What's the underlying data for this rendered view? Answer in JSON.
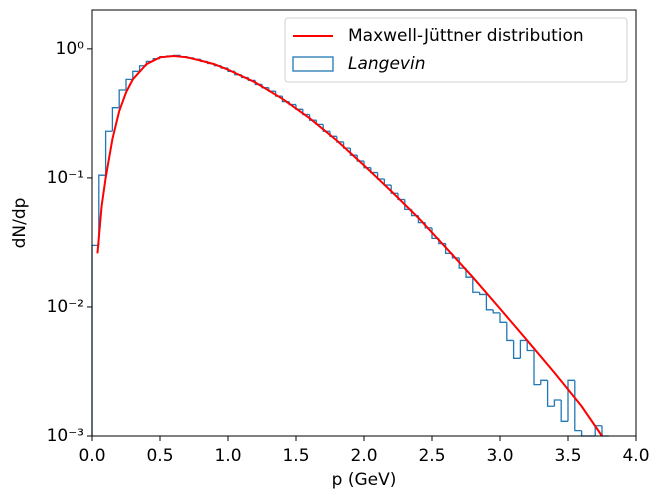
{
  "chart_data": {
    "type": "histogram",
    "xlabel": "p (GeV)",
    "ylabel": "dN/dp",
    "log_y": true,
    "xlim": [
      0,
      4
    ],
    "ylim": [
      0.001,
      2
    ],
    "xticks": [
      {
        "value": 0,
        "label": "0.0"
      },
      0.5,
      {
        "value": 1,
        "label": "1.0"
      },
      1.5,
      {
        "value": 2,
        "label": "2.0"
      },
      2.5,
      {
        "value": 3,
        "label": "3.0"
      },
      3.5,
      {
        "value": 4,
        "label": "4.0"
      }
    ],
    "yticks": [
      {
        "value": 0.001,
        "label": "10⁻³"
      },
      {
        "value": 0.01,
        "label": "10⁻²"
      },
      {
        "value": 0.1,
        "label": "10⁻¹"
      },
      {
        "value": 1,
        "label": "10⁰"
      }
    ],
    "legend": "upper right",
    "line": {
      "name": "Maxwell-Jüttner distribution",
      "color": "#ff0000",
      "x": [
        0.04,
        0.07,
        0.1,
        0.15,
        0.2,
        0.25,
        0.3,
        0.4,
        0.5,
        0.6,
        0.7,
        0.8,
        0.9,
        1.0,
        1.2,
        1.4,
        1.6,
        1.8,
        2.0,
        2.2,
        2.4,
        2.6,
        2.8,
        3.0,
        3.2,
        3.4,
        3.6,
        3.75
      ],
      "values": [
        0.026,
        0.06,
        0.1,
        0.2,
        0.33,
        0.46,
        0.58,
        0.76,
        0.86,
        0.88,
        0.86,
        0.81,
        0.76,
        0.69,
        0.55,
        0.41,
        0.29,
        0.195,
        0.125,
        0.079,
        0.049,
        0.029,
        0.017,
        0.0097,
        0.0055,
        0.0031,
        0.0017,
        0.001
      ]
    },
    "histogram": {
      "name": "Langevin",
      "color": "#1f77b4",
      "bins": [
        0,
        0.05,
        0.1,
        0.15,
        0.2,
        0.25,
        0.3,
        0.35,
        0.4,
        0.45,
        0.5,
        0.55,
        0.6,
        0.65,
        0.7,
        0.75,
        0.8,
        0.85,
        0.9,
        0.95,
        1.0,
        1.05,
        1.1,
        1.15,
        1.2,
        1.25,
        1.3,
        1.35,
        1.4,
        1.45,
        1.5,
        1.55,
        1.6,
        1.65,
        1.7,
        1.75,
        1.8,
        1.85,
        1.9,
        1.95,
        2.0,
        2.05,
        2.1,
        2.15,
        2.2,
        2.25,
        2.3,
        2.35,
        2.4,
        2.45,
        2.5,
        2.55,
        2.6,
        2.65,
        2.7,
        2.75,
        2.8,
        2.85,
        2.9,
        2.95,
        3.0,
        3.05,
        3.1,
        3.15,
        3.2,
        3.25,
        3.3,
        3.35,
        3.4,
        3.45,
        3.5,
        3.55,
        3.6,
        3.65,
        3.7,
        3.75,
        3.8
      ],
      "values": [
        0.03,
        0.105,
        0.23,
        0.35,
        0.48,
        0.58,
        0.67,
        0.74,
        0.8,
        0.84,
        0.87,
        0.88,
        0.89,
        0.87,
        0.85,
        0.83,
        0.8,
        0.77,
        0.74,
        0.71,
        0.67,
        0.63,
        0.6,
        0.57,
        0.53,
        0.5,
        0.47,
        0.43,
        0.39,
        0.37,
        0.34,
        0.31,
        0.28,
        0.26,
        0.23,
        0.21,
        0.19,
        0.17,
        0.15,
        0.135,
        0.12,
        0.11,
        0.098,
        0.088,
        0.076,
        0.068,
        0.057,
        0.051,
        0.045,
        0.041,
        0.034,
        0.031,
        0.026,
        0.024,
        0.02,
        0.017,
        0.013,
        0.0125,
        0.0095,
        0.009,
        0.0076,
        0.0055,
        0.004,
        0.0055,
        0.0046,
        0.0025,
        0.0027,
        0.0017,
        0.0019,
        0.0013,
        0.0027,
        0.0011,
        0,
        0,
        0.0012,
        0
      ]
    }
  }
}
